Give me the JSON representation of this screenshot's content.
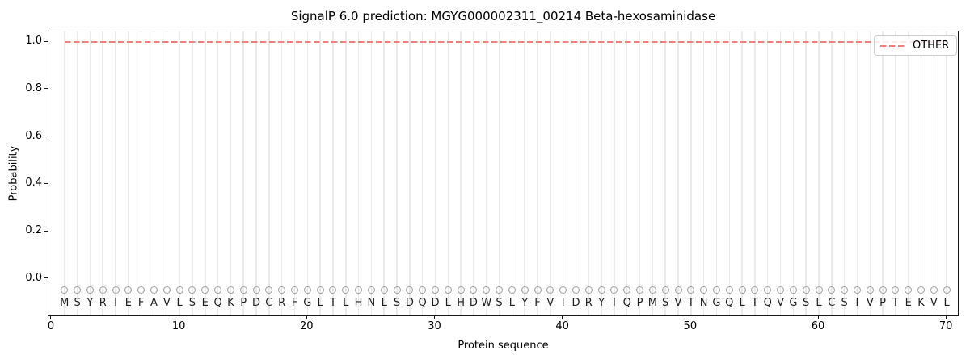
{
  "chart_data": {
    "type": "line",
    "title": "SignalP 6.0 prediction: MGYG000002311_00214 Beta-hexosaminidase",
    "xlabel": "Protein sequence",
    "ylabel": "Probability",
    "xlim": [
      -0.25,
      71.0
    ],
    "ylim": [
      -0.16,
      1.045
    ],
    "x_ticks": [
      0,
      10,
      20,
      30,
      40,
      50,
      60,
      70
    ],
    "y_ticks": [
      0.0,
      0.2,
      0.4,
      0.6,
      0.8,
      1.0
    ],
    "grid": "vertical gridline at every residue position 1-70, no horizontal gridlines",
    "series": [
      {
        "name": "OTHER",
        "linestyle": "dashed",
        "color": "#f08080",
        "x_start": 1,
        "x_end": 70,
        "y_constant": 1.0
      }
    ],
    "sequence": "MSYRIEFAVLSEQKPDCRFGLTLHNLSDQDLHDWSLYFVIDRYIQPMSVTNGQLTQVGSLCSIVPTEKVL",
    "sequence_markers": {
      "shape": "open-circle",
      "y": -0.045,
      "letter_y": -0.102,
      "circle_color": "#a0a0a0",
      "letter_color": "#1f1f1f"
    },
    "legend": {
      "position": "upper right",
      "entries": [
        {
          "label": "OTHER",
          "color": "#f08080",
          "linestyle": "dashed"
        }
      ]
    }
  },
  "colors": {
    "background": "#ffffff",
    "line_other": "#f08080",
    "gridline": "#ebebeb",
    "spine": "#1a1a1a",
    "circle": "#a0a0a0",
    "letter": "#1f1f1f",
    "legend_border": "#cccccc"
  }
}
